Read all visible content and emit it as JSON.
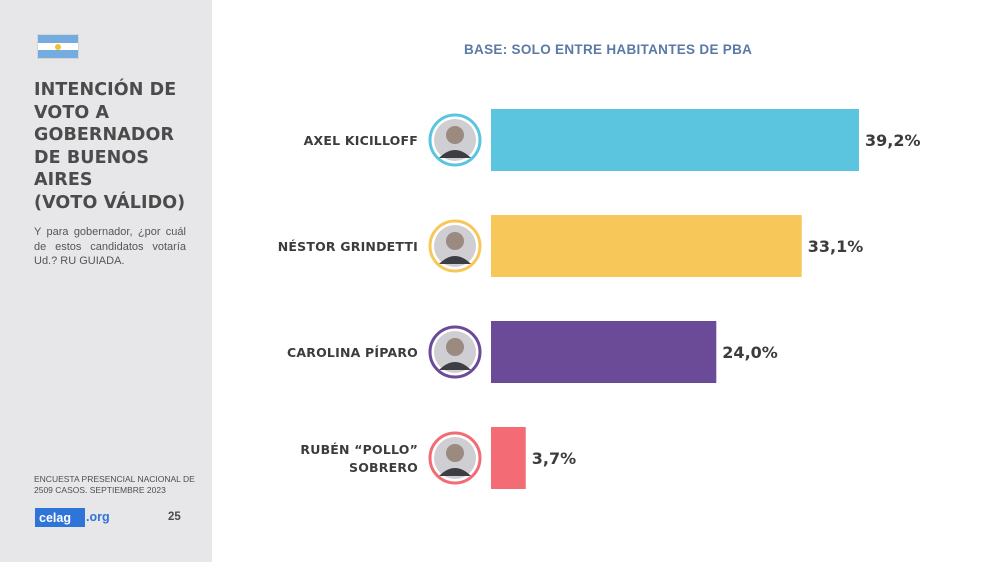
{
  "sidebar": {
    "flag_colors": {
      "celeste": "#74acdf",
      "white": "#ffffff",
      "sun": "#f2c12e"
    },
    "title_lines": [
      "INTENCIÓN DE",
      "VOTO A",
      "GOBERNADOR",
      "DE BUENOS",
      "AIRES",
      "(VOTO VÁLIDO)"
    ],
    "question": "Y para gobernador, ¿por cuál de estos candidatos votaría Ud.? RU GUIADA.",
    "source": "ENCUESTA PRESENCIAL NACIONAL DE 2509 CASOS. SEPTIEMBRE 2023",
    "logo_main": "celag",
    "logo_ext": ".org",
    "page_number": "25"
  },
  "chart_data": {
    "type": "bar",
    "orientation": "horizontal",
    "subtitle": "BASE: SOLO ENTRE HABITANTES DE PBA",
    "categories": [
      [
        "AXEL KICILLOFF"
      ],
      [
        "NÉSTOR GRINDETTI"
      ],
      [
        "CAROLINA PÍPARO"
      ],
      [
        "RUBÉN “POLLO”",
        "SOBRERO"
      ]
    ],
    "values": [
      39.2,
      33.1,
      24.0,
      3.7
    ],
    "value_labels": [
      "39,2%",
      "33,1%",
      "24,0%",
      "3,7%"
    ],
    "colors": [
      "#5bc5e0",
      "#f8c75a",
      "#6b4a97",
      "#f36b74"
    ],
    "avatar_ring_colors": [
      "#5bc5e0",
      "#f8c75a",
      "#6b4a97",
      "#f36b74"
    ],
    "avatar_icons": [
      "person-photo-icon",
      "person-photo-icon",
      "person-photo-icon",
      "person-photo-icon"
    ],
    "xlim": [
      0,
      39.2
    ],
    "grid": false,
    "legend": "none"
  }
}
